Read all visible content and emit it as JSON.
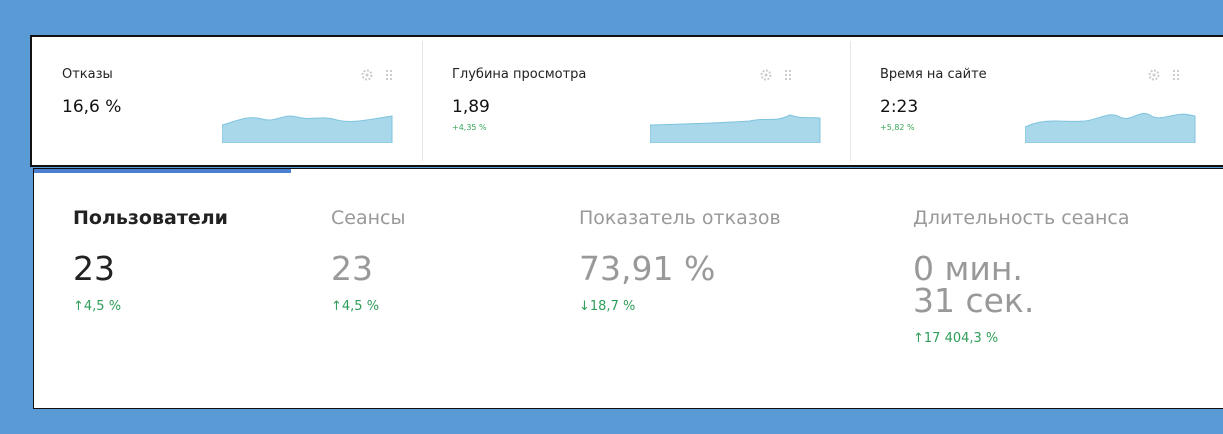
{
  "cards": [
    {
      "title": "Отказы",
      "value": "16,6 %"
    },
    {
      "title": "Глубина просмотра",
      "value": "1,89",
      "change": "+4,35 %"
    },
    {
      "title": "Время на сайте",
      "value": "2:23",
      "change": "+5,82 %"
    }
  ],
  "metrics": [
    {
      "label": "Пользователи",
      "value": [
        "23"
      ],
      "change": "↑4,5 %"
    },
    {
      "label": "Сеансы",
      "value": [
        "23"
      ],
      "change": "↑4,5 %"
    },
    {
      "label": "Показатель отказов",
      "value": [
        "73,91 %"
      ],
      "change": "↓18,7 %"
    },
    {
      "label": "Длительность сеанса",
      "value": [
        "0 мин.",
        "31 сек."
      ],
      "change": "↑17 404,3 %"
    }
  ]
}
